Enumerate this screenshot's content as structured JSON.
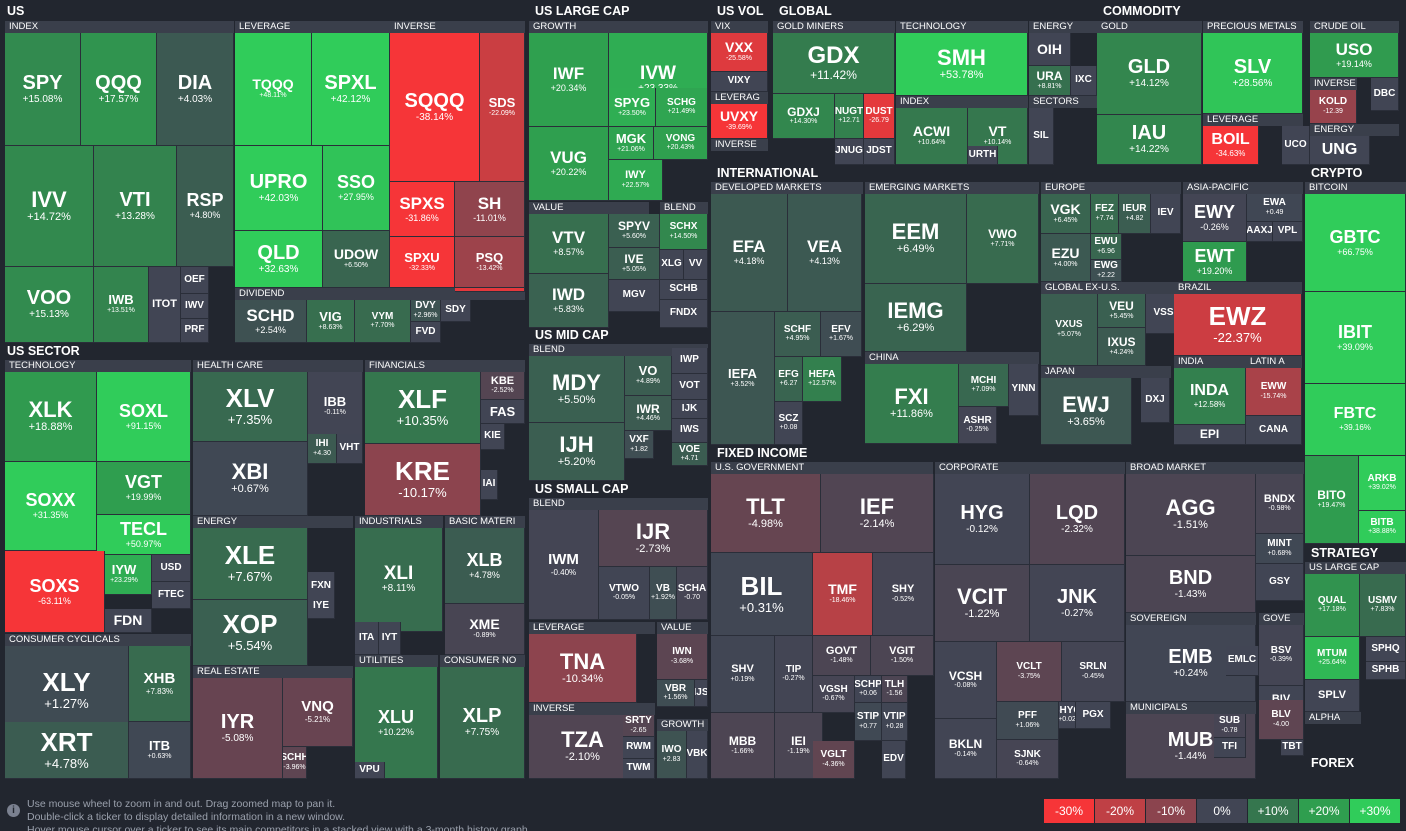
{
  "sections": [
    {
      "k": "us",
      "label": "US"
    },
    {
      "k": "uslc",
      "label": "US LARGE CAP"
    },
    {
      "k": "usvol",
      "label": "US VOL"
    },
    {
      "k": "global",
      "label": "GLOBAL"
    },
    {
      "k": "commodity",
      "label": "COMMODITY"
    },
    {
      "k": "ussector",
      "label": "US SECTOR"
    },
    {
      "k": "usmc",
      "label": "US MID CAP"
    },
    {
      "k": "ussc",
      "label": "US SMALL CAP"
    },
    {
      "k": "intl",
      "label": "INTERNATIONAL"
    },
    {
      "k": "crypto",
      "label": "CRYPTO"
    },
    {
      "k": "fixed",
      "label": "FIXED INCOME"
    },
    {
      "k": "strategy",
      "label": "STRATEGY"
    },
    {
      "k": "forex",
      "label": "FOREX"
    }
  ],
  "industries": [
    "INDEX",
    "LEVERAGE",
    "INVERSE",
    "DIVIDEND",
    "GROWTH",
    "VALUE",
    "BLEND",
    "VIX",
    "LEVERAG",
    "INVERSE",
    "GOLD MINERS",
    "TECHNOLOGY",
    "ENERGY",
    "INDEX",
    "SECTORS",
    "GOLD",
    "PRECIOUS METALS",
    "CRUDE OIL",
    "INVERSE",
    "LEVERAGE",
    "ENERGY",
    "TECHNOLOGY",
    "HEALTH CARE",
    "FINANCIALS",
    "ENERGY",
    "INDUSTRIALS",
    "BASIC MATERI",
    "UTILITIES",
    "CONSUMER NO",
    "CONSUMER CYCLICALS",
    "REAL ESTATE",
    "BLEND",
    "BLEND",
    "LEVERAGE",
    "VALUE",
    "INVERSE",
    "GROWTH",
    "DEVELOPED MARKETS",
    "EMERGING MARKETS",
    "EUROPE",
    "ASIA-PACIFIC",
    "GLOBAL EX-U.S.",
    "BRAZIL",
    "CHINA",
    "JAPAN",
    "INDIA",
    "LATIN A",
    "BITCOIN",
    "U.S. GOVERNMENT",
    "CORPORATE",
    "BROAD MARKET",
    "SOVEREIGN",
    "MUNICIPALS",
    "GOVE",
    "INVER",
    "US LARGE CAP",
    "ALPHA"
  ],
  "tickers": [
    [
      "SPY",
      "+15.08%"
    ],
    [
      "QQQ",
      "+17.57%"
    ],
    [
      "DIA",
      "+4.03%"
    ],
    [
      "IVV",
      "+14.72%"
    ],
    [
      "VTI",
      "+13.28%"
    ],
    [
      "RSP",
      "+4.80%"
    ],
    [
      "VOO",
      "+15.13%"
    ],
    [
      "IWB",
      "+13.51%"
    ],
    [
      "ITOT",
      ""
    ],
    [
      "OEF",
      ""
    ],
    [
      "IWV",
      ""
    ],
    [
      "PRF",
      ""
    ],
    [
      "TQQQ",
      "+48.11%"
    ],
    [
      "SPXL",
      "+42.12%"
    ],
    [
      "UPRO",
      "+42.03%"
    ],
    [
      "SSO",
      "+27.95%"
    ],
    [
      "QLD",
      "+32.63%"
    ],
    [
      "UDOW",
      "+6.50%"
    ],
    [
      "SQQQ",
      "-38.14%"
    ],
    [
      "SDS",
      "-22.09%"
    ],
    [
      "SPXS",
      "-31.86%"
    ],
    [
      "SH",
      "-11.01%"
    ],
    [
      "SDOW",
      "-8.54%"
    ],
    [
      "QID",
      "-26.98%"
    ],
    [
      "SPXU",
      "-32.33%"
    ],
    [
      "PSQ",
      "-13.42%"
    ],
    [
      "SCHD",
      "+2.54%"
    ],
    [
      "VIG",
      "+8.63%"
    ],
    [
      "VYM",
      "+7.70%"
    ],
    [
      "DVY",
      "+2.96%"
    ],
    [
      "SDY",
      ""
    ],
    [
      "FVD",
      ""
    ],
    [
      "IWF",
      "+20.34%"
    ],
    [
      "IVW",
      "+23.33%"
    ],
    [
      "SPYG",
      "+23.50%"
    ],
    [
      "SCHG",
      "+21.49%"
    ],
    [
      "VUG",
      "+20.22%"
    ],
    [
      "MGK",
      "+21.06%"
    ],
    [
      "VONG",
      "+20.43%"
    ],
    [
      "IWY",
      "+22.57%"
    ],
    [
      "VTV",
      "+8.57%"
    ],
    [
      "SPYV",
      "+5.60%"
    ],
    [
      "IVE",
      "+5.05%"
    ],
    [
      "MGV",
      ""
    ],
    [
      "IWD",
      "+5.83%"
    ],
    [
      "SCHX",
      "+14.50%"
    ],
    [
      "XLG",
      ""
    ],
    [
      "VV",
      ""
    ],
    [
      "SCHB",
      ""
    ],
    [
      "FNDX",
      ""
    ],
    [
      "VXX",
      "-25.58%"
    ],
    [
      "VIXY",
      ""
    ],
    [
      "UVXY",
      "-39.69%"
    ],
    [
      "GDX",
      "+11.42%"
    ],
    [
      "GDXJ",
      "+14.30%"
    ],
    [
      "NUGT",
      "+12.71"
    ],
    [
      "DUST",
      "-26.79"
    ],
    [
      "JNUG",
      ""
    ],
    [
      "JDST",
      ""
    ],
    [
      "SMH",
      "+53.78%"
    ],
    [
      "OIH",
      ""
    ],
    [
      "URA",
      "+8.81%"
    ],
    [
      "IXC",
      ""
    ],
    [
      "ACWI",
      "+10.64%"
    ],
    [
      "VT",
      "+10.14%"
    ],
    [
      "URTH",
      ""
    ],
    [
      "SIL",
      ""
    ],
    [
      "GLD",
      "+14.12%"
    ],
    [
      "IAU",
      "+14.22%"
    ],
    [
      "SLV",
      "+28.56%"
    ],
    [
      "USO",
      "+19.14%"
    ],
    [
      "KOLD",
      "-12.39"
    ],
    [
      "DBC",
      ""
    ],
    [
      "BOIL",
      "-34.63%"
    ],
    [
      "UCO",
      ""
    ],
    [
      "UNG",
      ""
    ],
    [
      "XLK",
      "+18.88%"
    ],
    [
      "SOXL",
      "+91.15%"
    ],
    [
      "VGT",
      "+19.99%"
    ],
    [
      "SOXX",
      "+31.35%"
    ],
    [
      "TECL",
      "+50.97%"
    ],
    [
      "IYW",
      "+23.29%"
    ],
    [
      "USD",
      ""
    ],
    [
      "FTEC",
      ""
    ],
    [
      "SOXS",
      "-63.11%"
    ],
    [
      "FDN",
      ""
    ],
    [
      "XLV",
      "+7.35%"
    ],
    [
      "IBB",
      "-0.11%"
    ],
    [
      "XBI",
      "+0.67%"
    ],
    [
      "IHI",
      "+4.30"
    ],
    [
      "VHT",
      ""
    ],
    [
      "XLF",
      "+10.35%"
    ],
    [
      "KBE",
      "-2.52%"
    ],
    [
      "FAS",
      ""
    ],
    [
      "KIE",
      ""
    ],
    [
      "KRE",
      "-10.17%"
    ],
    [
      "IAI",
      ""
    ],
    [
      "XLE",
      "+7.67%"
    ],
    [
      "FXN",
      ""
    ],
    [
      "IYE",
      ""
    ],
    [
      "XOP",
      "+5.54%"
    ],
    [
      "XLI",
      "+8.11%"
    ],
    [
      "ITA",
      ""
    ],
    [
      "IYT",
      ""
    ],
    [
      "XLB",
      "+4.78%"
    ],
    [
      "XME",
      "-0.89%"
    ],
    [
      "XLU",
      "+10.22%"
    ],
    [
      "VPU",
      ""
    ],
    [
      "XLP",
      "+7.75%"
    ],
    [
      "XLY",
      "+1.27%"
    ],
    [
      "XHB",
      "+7.83%"
    ],
    [
      "XRT",
      "+4.78%"
    ],
    [
      "ITB",
      "+0.63%"
    ],
    [
      "IYR",
      "-5.08%"
    ],
    [
      "VNQ",
      "-5.21%"
    ],
    [
      "SCHH",
      "-3.96%"
    ],
    [
      "MDY",
      "+5.50%"
    ],
    [
      "VO",
      "+4.89%"
    ],
    [
      "IWR",
      "+4.46%"
    ],
    [
      "IJH",
      "+5.20%"
    ],
    [
      "VXF",
      "+1.82"
    ],
    [
      "IWP",
      ""
    ],
    [
      "VOT",
      ""
    ],
    [
      "IJK",
      ""
    ],
    [
      "IWS",
      ""
    ],
    [
      "VOE",
      "+4.71"
    ],
    [
      "IWM",
      "-0.40%"
    ],
    [
      "IJR",
      "-2.73%"
    ],
    [
      "VTWO",
      "-0.05%"
    ],
    [
      "VB",
      "+1.92%"
    ],
    [
      "SCHA",
      "-0.70"
    ],
    [
      "TNA",
      "-10.34%"
    ],
    [
      "IWN",
      "-3.68%"
    ],
    [
      "VBR",
      "+1.56%"
    ],
    [
      "IJS",
      ""
    ],
    [
      "TZA",
      "-2.10%"
    ],
    [
      "SRTY",
      "-2.65"
    ],
    [
      "RWM",
      ""
    ],
    [
      "TWM",
      ""
    ],
    [
      "IWO",
      "+2.83"
    ],
    [
      "VBK",
      ""
    ],
    [
      "EFA",
      "+4.18%"
    ],
    [
      "VEA",
      "+4.13%"
    ],
    [
      "IEFA",
      "+3.52%"
    ],
    [
      "SCHF",
      "+4.95%"
    ],
    [
      "EFV",
      "+1.67%"
    ],
    [
      "EFG",
      "+6.27"
    ],
    [
      "HEFA",
      "+12.57%"
    ],
    [
      "SCZ",
      "+0.08"
    ],
    [
      "EEM",
      "+6.49%"
    ],
    [
      "VWO",
      "+7.71%"
    ],
    [
      "IEMG",
      "+6.29%"
    ],
    [
      "VGK",
      "+6.45%"
    ],
    [
      "FEZ",
      "+7.74"
    ],
    [
      "IEUR",
      "+4.82"
    ],
    [
      "IEV",
      ""
    ],
    [
      "EWU",
      "+6.96"
    ],
    [
      "EWG",
      "+2.22"
    ],
    [
      "EZU",
      "+4.00%"
    ],
    [
      "EWY",
      "-0.26%"
    ],
    [
      "EWA",
      "+0.49"
    ],
    [
      "AAXJ",
      ""
    ],
    [
      "VPL",
      ""
    ],
    [
      "EWT",
      "+19.20%"
    ],
    [
      "VXUS",
      "+5.07%"
    ],
    [
      "VEU",
      "+5.45%"
    ],
    [
      "VSS",
      ""
    ],
    [
      "IXUS",
      "+4.24%"
    ],
    [
      "EWZ",
      "-22.37%"
    ],
    [
      "FXI",
      "+11.86%"
    ],
    [
      "MCHI",
      "+7.09%"
    ],
    [
      "YINN",
      ""
    ],
    [
      "ASHR",
      "-0.25%"
    ],
    [
      "EWJ",
      "+3.65%"
    ],
    [
      "DXJ",
      ""
    ],
    [
      "INDA",
      "+12.58%"
    ],
    [
      "EPI",
      ""
    ],
    [
      "EWW",
      "-15.74%"
    ],
    [
      "CANA",
      ""
    ],
    [
      "GBTC",
      "+66.75%"
    ],
    [
      "IBIT",
      "+39.09%"
    ],
    [
      "FBTC",
      "+39.16%"
    ],
    [
      "BITO",
      "+19.47%"
    ],
    [
      "ARKB",
      "+39.02%"
    ],
    [
      "BITB",
      "+38.88%"
    ],
    [
      "TLT",
      "-4.98%"
    ],
    [
      "IEF",
      "-2.14%"
    ],
    [
      "BIL",
      "+0.31%"
    ],
    [
      "TMF",
      "-18.46%"
    ],
    [
      "SHY",
      "-0.52%"
    ],
    [
      "GOVT",
      "-1.48%"
    ],
    [
      "VGIT",
      "-1.50%"
    ],
    [
      "SHV",
      "+0.19%"
    ],
    [
      "TIP",
      "-0.27%"
    ],
    [
      "VGSH",
      "-0.67%"
    ],
    [
      "SCHP",
      "+0.06"
    ],
    [
      "TLH",
      "-1.56"
    ],
    [
      "STIP",
      "+0.77"
    ],
    [
      "VTIP",
      "+0.28"
    ],
    [
      "MBB",
      "-1.66%"
    ],
    [
      "IEI",
      "-1.19%"
    ],
    [
      "VGLT",
      "-4.36%"
    ],
    [
      "EDV",
      ""
    ],
    [
      "HYG",
      "-0.12%"
    ],
    [
      "LQD",
      "-2.32%"
    ],
    [
      "VCIT",
      "-1.22%"
    ],
    [
      "JNK",
      "-0.27%"
    ],
    [
      "VCSH",
      "-0.08%"
    ],
    [
      "VCLT",
      "-3.75%"
    ],
    [
      "SRLN",
      "-0.45%"
    ],
    [
      "PFF",
      "+1.06%"
    ],
    [
      "SHYG",
      "+0.02"
    ],
    [
      "PGX",
      ""
    ],
    [
      "BKLN",
      "-0.14%"
    ],
    [
      "SJNK",
      "-0.64%"
    ],
    [
      "AGG",
      "-1.51%"
    ],
    [
      "BNDX",
      "-0.98%"
    ],
    [
      "MINT",
      "+0.68%"
    ],
    [
      "BND",
      "-1.43%"
    ],
    [
      "GSY",
      ""
    ],
    [
      "EMB",
      "+0.24%"
    ],
    [
      "EMLC",
      ""
    ],
    [
      "MUB",
      "-1.44%"
    ],
    [
      "SUB",
      "-0.78"
    ],
    [
      "TFI",
      ""
    ],
    [
      "BSV",
      "-0.39%"
    ],
    [
      "BIV",
      ""
    ],
    [
      "BLV",
      "-4.00"
    ],
    [
      "TBT",
      ""
    ],
    [
      "QUAL",
      "+17.18%"
    ],
    [
      "USMV",
      "+7.83%"
    ],
    [
      "MTUM",
      "+25.64%"
    ],
    [
      "SPHQ",
      ""
    ],
    [
      "SPHB",
      ""
    ],
    [
      "SPLV",
      ""
    ]
  ],
  "footer": {
    "hint1": "Use mouse wheel to zoom in and out. Drag zoomed map to pan it.",
    "hint2": "Double-click a ticker to display detailed information in a new window.",
    "hint3": "Hover mouse cursor over a ticker to see its main competitors in a stacked view with a 3-month history graph.",
    "legend": [
      {
        "label": "-30%",
        "color": "#f63538"
      },
      {
        "label": "-20%",
        "color": "#bf4045"
      },
      {
        "label": "-10%",
        "color": "#8b444e"
      },
      {
        "label": "0%",
        "color": "#414554"
      },
      {
        "label": "+10%",
        "color": "#35764e"
      },
      {
        "label": "+20%",
        "color": "#2f9e4f"
      },
      {
        "label": "+30%",
        "color": "#30cc5a"
      }
    ]
  }
}
